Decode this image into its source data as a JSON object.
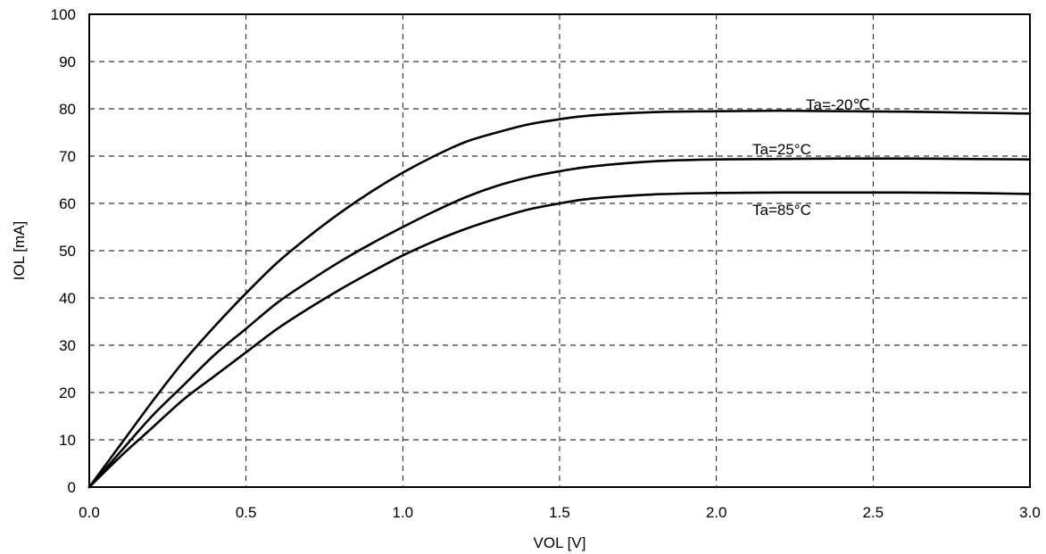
{
  "chart_data": {
    "type": "line",
    "xlabel": "VOL [V]",
    "ylabel": "IOL [mA]",
    "xlim": [
      0,
      3.0
    ],
    "ylim": [
      0,
      100
    ],
    "x_ticks": [
      "0.0",
      "0.5",
      "1.0",
      "1.5",
      "2.0",
      "2.5",
      "3.0"
    ],
    "y_ticks": [
      "0",
      "10",
      "20",
      "30",
      "40",
      "50",
      "60",
      "70",
      "80",
      "90",
      "100"
    ],
    "grid": true,
    "series": [
      {
        "name": "Ta=-20℃",
        "x": [
          0,
          0.1,
          0.2,
          0.3,
          0.4,
          0.5,
          0.6,
          0.7,
          0.8,
          0.9,
          1.0,
          1.1,
          1.2,
          1.3,
          1.4,
          1.5,
          1.6,
          1.8,
          2.0,
          2.2,
          2.4,
          2.6,
          2.8,
          3.0
        ],
        "y": [
          0,
          9,
          18,
          26.5,
          34,
          41,
          47.5,
          53,
          58,
          62.5,
          66.5,
          70,
          73,
          75,
          76.7,
          77.8,
          78.6,
          79.3,
          79.5,
          79.6,
          79.5,
          79.4,
          79.2,
          79
        ]
      },
      {
        "name": "Ta=25°C",
        "x": [
          0,
          0.1,
          0.2,
          0.3,
          0.4,
          0.5,
          0.6,
          0.7,
          0.8,
          0.9,
          1.0,
          1.1,
          1.2,
          1.3,
          1.4,
          1.5,
          1.6,
          1.8,
          2.0,
          2.2,
          2.4,
          2.6,
          2.8,
          3.0
        ],
        "y": [
          0,
          7.5,
          15,
          21.5,
          28,
          33.5,
          39,
          43.5,
          47.7,
          51.5,
          55,
          58.3,
          61.3,
          63.7,
          65.5,
          66.8,
          67.8,
          68.9,
          69.3,
          69.4,
          69.5,
          69.5,
          69.4,
          69.3
        ]
      },
      {
        "name": "Ta=85°C",
        "x": [
          0,
          0.1,
          0.2,
          0.3,
          0.4,
          0.5,
          0.6,
          0.7,
          0.8,
          0.9,
          1.0,
          1.1,
          1.2,
          1.3,
          1.4,
          1.5,
          1.6,
          1.8,
          2.0,
          2.2,
          2.4,
          2.6,
          2.8,
          3.0
        ],
        "y": [
          0,
          6.5,
          12.5,
          18.5,
          23.5,
          28.5,
          33.5,
          37.8,
          41.8,
          45.5,
          49,
          52,
          54.6,
          56.8,
          58.7,
          60,
          61,
          61.9,
          62.2,
          62.3,
          62.3,
          62.3,
          62.2,
          62
        ]
      }
    ]
  }
}
